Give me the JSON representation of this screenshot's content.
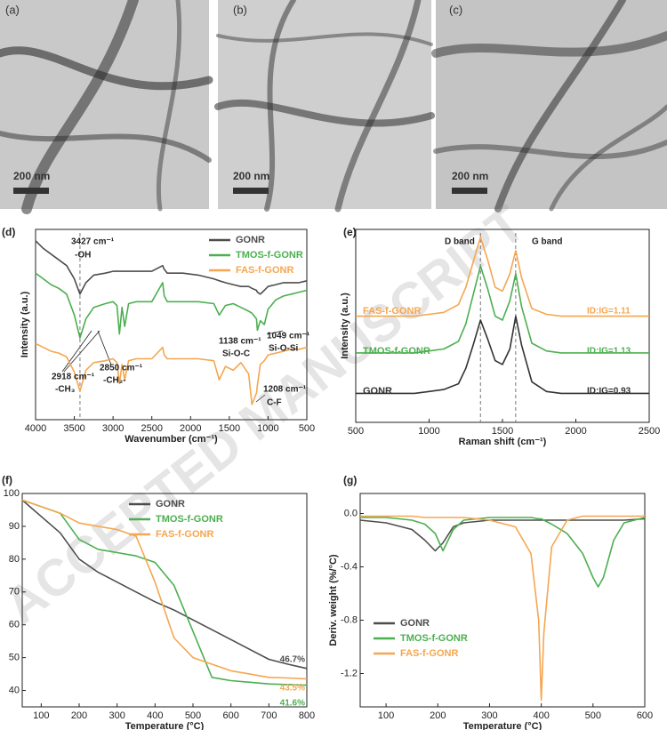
{
  "images": [
    {
      "label": "(a)",
      "scale_bar": "200 nm"
    },
    {
      "label": "(b)",
      "scale_bar": "200 nm"
    },
    {
      "label": "(c)",
      "scale_bar": "200 nm"
    }
  ],
  "watermark": "ACCEPTED MANUSCRIPT",
  "chart_data": [
    {
      "type": "line",
      "panel_label": "(d)",
      "x_label": "Wavenumber (cm⁻¹)",
      "y_label": "Intensity (a.u.)",
      "xlim": [
        4000,
        500
      ],
      "xticks": [
        4000,
        3500,
        3000,
        2500,
        2000,
        1500,
        1000,
        500
      ],
      "ylim": [
        0,
        10
      ],
      "legend": "upper right",
      "vlines": [
        3427
      ],
      "annotations": [
        "3427 cm⁻¹",
        "-OH",
        "1138 cm⁻¹",
        "Si-O-C",
        "1049 cm⁻¹",
        "Si-O-Si",
        "2918 cm⁻¹",
        "-CH₃",
        "2850 cm⁻¹",
        "-CH₂-",
        "1208 cm⁻¹",
        "C-F"
      ],
      "x": [
        4000,
        3900,
        3800,
        3700,
        3600,
        3500,
        3427,
        3350,
        3250,
        3100,
        3000,
        2950,
        2918,
        2885,
        2850,
        2800,
        2700,
        2500,
        2360,
        2340,
        2300,
        2100,
        1900,
        1700,
        1630,
        1550,
        1450,
        1350,
        1250,
        1208,
        1150,
        1138,
        1100,
        1049,
        1000,
        900,
        800,
        700,
        600,
        500
      ],
      "series": [
        {
          "name": "GONR",
          "color": "#4d4d4d",
          "values": [
            9.4,
            9.0,
            8.7,
            8.4,
            8.1,
            7.4,
            6.6,
            7.2,
            7.6,
            7.7,
            7.8,
            7.8,
            7.8,
            7.8,
            7.8,
            7.8,
            7.8,
            7.8,
            8.1,
            7.9,
            7.7,
            7.7,
            7.6,
            7.4,
            7.3,
            7.2,
            7.1,
            7.0,
            7.0,
            6.9,
            6.8,
            6.7,
            6.6,
            6.8,
            7.0,
            7.1,
            7.2,
            7.2,
            7.2,
            7.3
          ]
        },
        {
          "name": "TMOS-f-GONR",
          "color": "#4caf50",
          "values": [
            7.7,
            7.4,
            7.1,
            6.9,
            6.6,
            5.5,
            4.3,
            5.3,
            5.9,
            6.1,
            6.2,
            6.0,
            4.5,
            5.9,
            4.9,
            6.1,
            6.2,
            6.2,
            7.2,
            6.5,
            6.2,
            6.2,
            6.2,
            6.1,
            5.5,
            6.0,
            6.1,
            5.9,
            5.7,
            5.6,
            5.3,
            4.7,
            5.2,
            5.0,
            5.8,
            6.3,
            6.5,
            6.6,
            6.7,
            6.8
          ]
        },
        {
          "name": "FAS-f-GONR",
          "color": "#f5a650",
          "values": [
            4.0,
            3.8,
            3.6,
            3.5,
            3.3,
            2.5,
            1.5,
            2.6,
            3.0,
            3.1,
            3.2,
            3.0,
            1.9,
            2.9,
            2.1,
            3.1,
            3.2,
            3.2,
            3.8,
            3.4,
            3.2,
            3.2,
            3.2,
            3.1,
            2.1,
            2.8,
            2.6,
            3.0,
            2.4,
            0.8,
            1.4,
            1.8,
            2.9,
            3.1,
            3.4,
            3.5,
            3.6,
            3.7,
            3.7,
            3.8
          ]
        }
      ]
    },
    {
      "type": "line",
      "panel_label": "(e)",
      "x_label": "Raman shift (cm⁻¹)",
      "y_label": "Intensity (a.u.)",
      "xlim": [
        500,
        2500
      ],
      "xticks": [
        500,
        1000,
        1500,
        2000,
        2500
      ],
      "ylim": [
        0,
        10
      ],
      "vlines": [
        1350,
        1590
      ],
      "annotations": [
        "D band",
        "G band",
        "ID:IG=1.11",
        "ID:IG=1.13",
        "ID:IG=0.93"
      ],
      "x": [
        500,
        700,
        900,
        1000,
        1100,
        1200,
        1250,
        1300,
        1350,
        1400,
        1450,
        1500,
        1550,
        1590,
        1630,
        1700,
        1800,
        1900,
        2000,
        2200,
        2500
      ],
      "series": [
        {
          "name": "GONR",
          "color": "#333333",
          "values": [
            1.5,
            1.5,
            1.5,
            1.6,
            1.7,
            2.0,
            2.8,
            4.0,
            5.3,
            4.3,
            3.2,
            3.0,
            3.8,
            5.5,
            4.0,
            2.1,
            1.6,
            1.5,
            1.5,
            1.5,
            1.5
          ]
        },
        {
          "name": "TMOS-f-GONR",
          "color": "#4caf50",
          "values": [
            3.6,
            3.6,
            3.6,
            3.7,
            3.8,
            4.2,
            5.1,
            6.6,
            8.1,
            6.9,
            5.5,
            5.3,
            6.3,
            7.7,
            6.0,
            4.1,
            3.7,
            3.6,
            3.6,
            3.6,
            3.6
          ]
        },
        {
          "name": "FAS-f-GONR",
          "color": "#f5a650",
          "values": [
            5.5,
            5.5,
            5.5,
            5.6,
            5.7,
            6.1,
            7.0,
            8.3,
            9.6,
            8.4,
            7.0,
            6.8,
            7.7,
            8.9,
            7.5,
            5.9,
            5.6,
            5.5,
            5.5,
            5.5,
            5.5
          ]
        }
      ]
    },
    {
      "type": "line",
      "panel_label": "(f)",
      "x_label": "Temperature (°C)",
      "xlim": [
        50,
        800
      ],
      "xticks": [
        100,
        200,
        300,
        400,
        500,
        600,
        700,
        800
      ],
      "ylim": [
        35,
        100
      ],
      "yticks": [
        40,
        50,
        60,
        70,
        80,
        90,
        100
      ],
      "legend": "upper center",
      "x": [
        50,
        100,
        150,
        200,
        250,
        300,
        350,
        400,
        450,
        500,
        550,
        600,
        650,
        700,
        750,
        800
      ],
      "series": [
        {
          "name": "GONR",
          "color": "#4d4d4d",
          "values": [
            98,
            93,
            88,
            80,
            76,
            73,
            70,
            67,
            64.5,
            61.5,
            58.5,
            55.5,
            52.5,
            49.5,
            48,
            46.7
          ],
          "value_labels": [
            null,
            null,
            null,
            null,
            null,
            null,
            null,
            null,
            null,
            null,
            null,
            null,
            null,
            null,
            null,
            "46.7%"
          ]
        },
        {
          "name": "TMOS-f-GONR",
          "color": "#4caf50",
          "values": [
            98,
            96,
            94,
            86,
            83,
            82,
            81,
            79,
            72,
            58,
            44,
            43,
            42.5,
            42,
            41.8,
            41.6
          ],
          "value_labels": [
            null,
            null,
            null,
            null,
            null,
            null,
            null,
            null,
            null,
            null,
            null,
            null,
            null,
            null,
            null,
            "41.6%"
          ]
        },
        {
          "name": "FAS-f-GONR",
          "color": "#f5a650",
          "values": [
            98,
            96,
            94,
            91,
            90,
            89,
            87,
            73,
            56,
            50,
            48,
            46,
            45,
            44,
            43.8,
            43.5
          ],
          "value_labels": [
            null,
            null,
            null,
            null,
            null,
            null,
            null,
            null,
            null,
            null,
            null,
            null,
            null,
            null,
            null,
            "43.5%"
          ]
        }
      ]
    },
    {
      "type": "line",
      "panel_label": "(g)",
      "x_label": "Temperature (°C)",
      "y_label": "Deriv. weight (%/°C)",
      "xlim": [
        50,
        600
      ],
      "xticks": [
        100,
        200,
        300,
        400,
        500,
        600
      ],
      "ylim": [
        -1.45,
        0.15
      ],
      "yticks": [
        -1.2,
        -0.8,
        -0.4,
        {
          "value": 0,
          "label": "0.0"
        }
      ],
      "legend": "lower left",
      "x": [
        50,
        100,
        150,
        175,
        195,
        210,
        230,
        250,
        300,
        350,
        380,
        395,
        400,
        405,
        420,
        450,
        480,
        500,
        510,
        520,
        540,
        560,
        600
      ],
      "series": [
        {
          "name": "GONR",
          "color": "#4d4d4d",
          "values": [
            -0.05,
            -0.07,
            -0.12,
            -0.2,
            -0.28,
            -0.22,
            -0.1,
            -0.07,
            -0.05,
            -0.05,
            -0.05,
            -0.05,
            -0.05,
            -0.05,
            -0.05,
            -0.05,
            -0.05,
            -0.05,
            -0.05,
            -0.05,
            -0.05,
            -0.05,
            -0.04
          ]
        },
        {
          "name": "TMOS-f-GONR",
          "color": "#4caf50",
          "values": [
            -0.03,
            -0.03,
            -0.05,
            -0.08,
            -0.15,
            -0.28,
            -0.12,
            -0.05,
            -0.03,
            -0.03,
            -0.03,
            -0.04,
            -0.04,
            -0.05,
            -0.08,
            -0.15,
            -0.3,
            -0.48,
            -0.55,
            -0.48,
            -0.2,
            -0.07,
            -0.03
          ]
        },
        {
          "name": "FAS-f-GONR",
          "color": "#f5a650",
          "values": [
            -0.02,
            -0.02,
            -0.02,
            -0.03,
            -0.03,
            -0.03,
            -0.03,
            -0.03,
            -0.05,
            -0.1,
            -0.3,
            -0.8,
            -1.4,
            -0.9,
            -0.25,
            -0.05,
            -0.02,
            -0.02,
            -0.02,
            -0.02,
            -0.02,
            -0.02,
            -0.02
          ]
        }
      ]
    }
  ]
}
